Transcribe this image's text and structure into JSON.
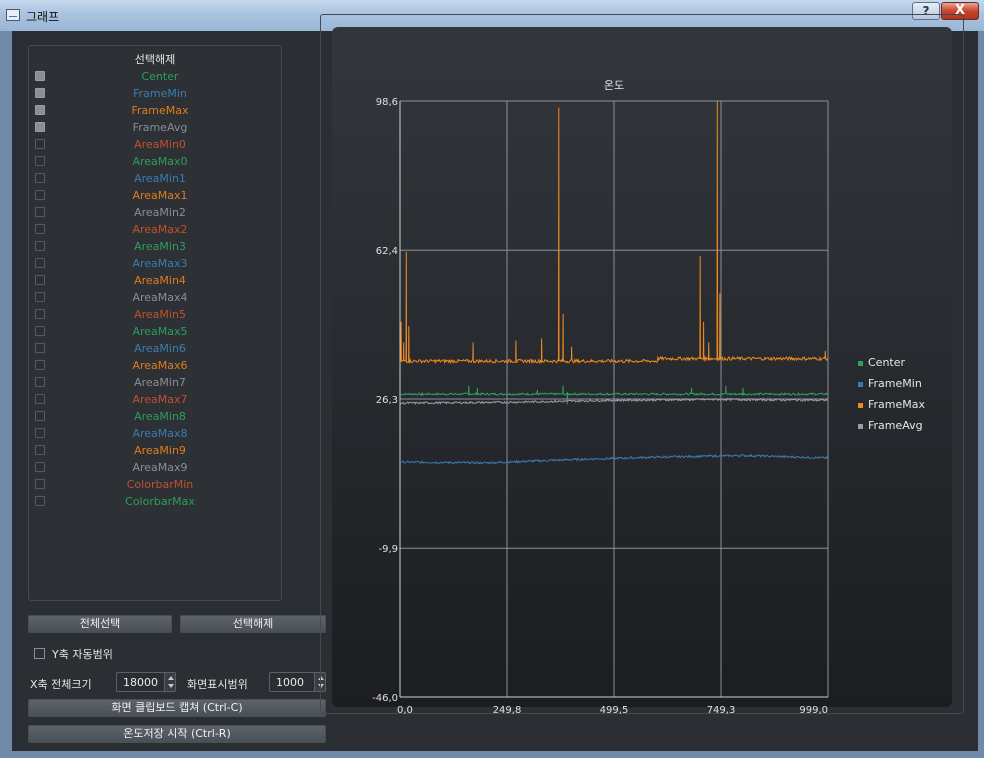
{
  "window": {
    "title": "그래프",
    "help_label": "?",
    "close_label": "X"
  },
  "list": {
    "header": "선택해제",
    "items": [
      {
        "label": "Center",
        "checked": true,
        "color": "#2e9d5b"
      },
      {
        "label": "FrameMin",
        "checked": true,
        "color": "#3b7cb0"
      },
      {
        "label": "FrameMax",
        "checked": true,
        "color": "#e07c1a"
      },
      {
        "label": "FrameAvg",
        "checked": true,
        "color": "#8a8e94"
      },
      {
        "label": "AreaMin0",
        "checked": false,
        "color": "#c0502e"
      },
      {
        "label": "AreaMax0",
        "checked": false,
        "color": "#2e9d5b"
      },
      {
        "label": "AreaMin1",
        "checked": false,
        "color": "#3b7cb0"
      },
      {
        "label": "AreaMax1",
        "checked": false,
        "color": "#e07c1a"
      },
      {
        "label": "AreaMin2",
        "checked": false,
        "color": "#8a8e94"
      },
      {
        "label": "AreaMax2",
        "checked": false,
        "color": "#c0502e"
      },
      {
        "label": "AreaMin3",
        "checked": false,
        "color": "#2e9d5b"
      },
      {
        "label": "AreaMax3",
        "checked": false,
        "color": "#3b7cb0"
      },
      {
        "label": "AreaMin4",
        "checked": false,
        "color": "#e07c1a"
      },
      {
        "label": "AreaMax4",
        "checked": false,
        "color": "#8a8e94"
      },
      {
        "label": "AreaMin5",
        "checked": false,
        "color": "#c0502e"
      },
      {
        "label": "AreaMax5",
        "checked": false,
        "color": "#2e9d5b"
      },
      {
        "label": "AreaMin6",
        "checked": false,
        "color": "#3b7cb0"
      },
      {
        "label": "AreaMax6",
        "checked": false,
        "color": "#e07c1a"
      },
      {
        "label": "AreaMin7",
        "checked": false,
        "color": "#8a8e94"
      },
      {
        "label": "AreaMax7",
        "checked": false,
        "color": "#c0502e"
      },
      {
        "label": "AreaMin8",
        "checked": false,
        "color": "#2e9d5b"
      },
      {
        "label": "AreaMax8",
        "checked": false,
        "color": "#3b7cb0"
      },
      {
        "label": "AreaMin9",
        "checked": false,
        "color": "#e07c1a"
      },
      {
        "label": "AreaMax9",
        "checked": false,
        "color": "#8a8e94"
      },
      {
        "label": "ColorbarMin",
        "checked": false,
        "color": "#c0502e"
      },
      {
        "label": "ColorbarMax",
        "checked": false,
        "color": "#2e9d5b"
      }
    ]
  },
  "controls": {
    "select_all_label": "전체선택",
    "deselect_label": "선택해제",
    "y_auto_label": "Y축 자동범위",
    "y_auto_checked": false,
    "x_total_label": "X축 전체크기",
    "x_total_value": "18000",
    "display_range_label": "화면표시범위",
    "display_range_value": "1000",
    "capture_label": "화면 클립보드 캡쳐 (Ctrl-C)",
    "save_label": "온도저장 시작 (Ctrl-R)"
  },
  "chart_data": {
    "type": "line",
    "title": "온도",
    "x_ticks": [
      "0,0",
      "249,8",
      "499,5",
      "749,3",
      "999,0"
    ],
    "y_ticks": [
      "98,6",
      "62,4",
      "26,3",
      "-9,9",
      "-46,0"
    ],
    "xlim": [
      0,
      999
    ],
    "ylim": [
      -46.0,
      98.6
    ],
    "grid": true,
    "legend_position": "right",
    "series": [
      {
        "name": "Center",
        "color": "#2ea35e",
        "base": 27.5,
        "spikes": [
          [
            5,
            23.5
          ],
          [
            50,
            27.0
          ],
          [
            75,
            24.0
          ],
          [
            135,
            28.5
          ],
          [
            160,
            29.5
          ],
          [
            180,
            29.0
          ],
          [
            320,
            28.5
          ],
          [
            380,
            29.5
          ],
          [
            390,
            25.0
          ],
          [
            575,
            25.5
          ],
          [
            680,
            29.0
          ],
          [
            715,
            28.5
          ],
          [
            735,
            30.0
          ],
          [
            760,
            29.5
          ],
          [
            800,
            29.0
          ]
        ]
      },
      {
        "name": "FrameMin",
        "color": "#3b7cb0",
        "base": 11.0,
        "trend": [
          [
            0,
            11.0
          ],
          [
            200,
            10.8
          ],
          [
            400,
            11.6
          ],
          [
            600,
            12.2
          ],
          [
            800,
            12.6
          ],
          [
            999,
            12.0
          ]
        ]
      },
      {
        "name": "FrameMax",
        "color": "#ef8a1f",
        "base": 35.5,
        "spikes": [
          [
            2,
            45.0
          ],
          [
            8,
            40.0
          ],
          [
            14,
            62.0
          ],
          [
            20,
            44.0
          ],
          [
            115,
            36.5
          ],
          [
            170,
            40.0
          ],
          [
            270,
            40.5
          ],
          [
            315,
            38.0
          ],
          [
            330,
            41.0
          ],
          [
            370,
            97.0
          ],
          [
            380,
            47.0
          ],
          [
            400,
            39.0
          ],
          [
            700,
            61.0
          ],
          [
            708,
            45.0
          ],
          [
            720,
            40.0
          ],
          [
            740,
            98.6
          ],
          [
            746,
            52.0
          ],
          [
            755,
            44.0
          ],
          [
            825,
            51.0
          ],
          [
            833,
            40.0
          ],
          [
            875,
            39.0
          ],
          [
            985,
            40.0
          ],
          [
            992,
            38.0
          ]
        ]
      },
      {
        "name": "FrameAvg",
        "color": "#9a9ea4",
        "base": 25.5,
        "trend": [
          [
            0,
            25.3
          ],
          [
            250,
            25.5
          ],
          [
            500,
            26.0
          ],
          [
            750,
            26.2
          ],
          [
            999,
            26.0
          ]
        ]
      }
    ]
  }
}
